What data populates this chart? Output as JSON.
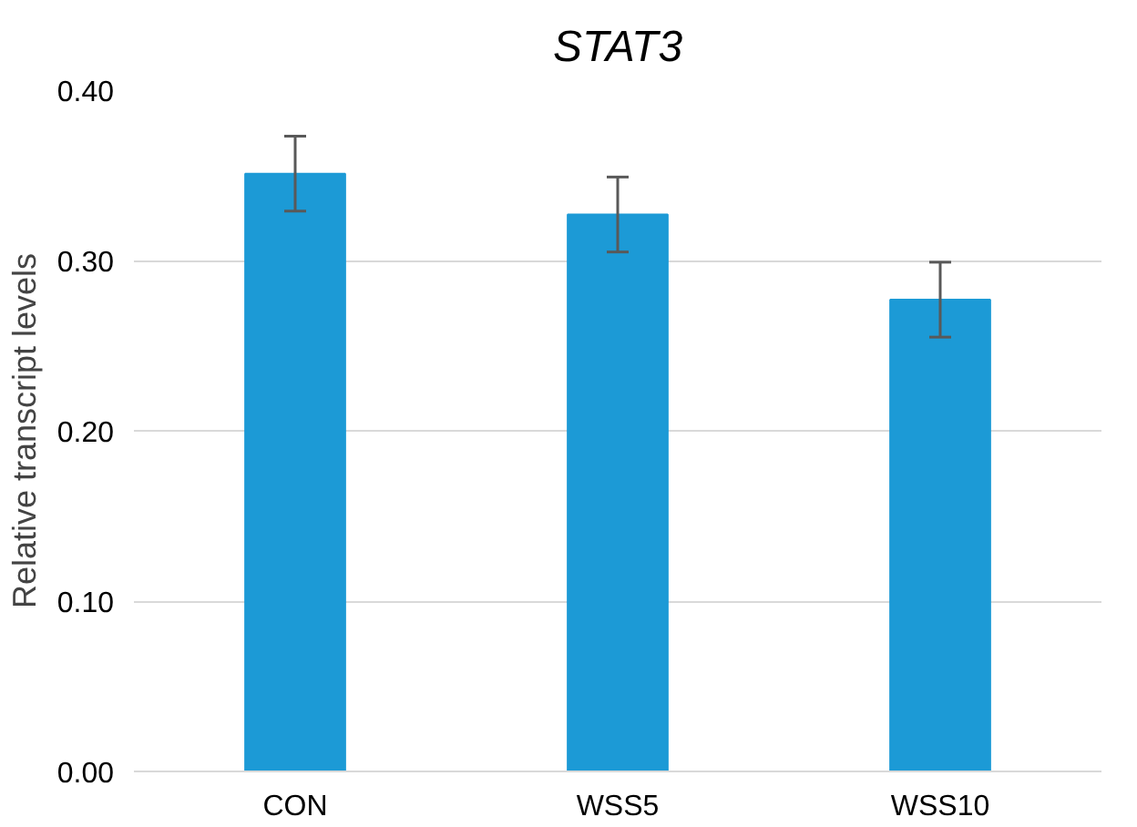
{
  "chart_data": {
    "type": "bar",
    "title": "STAT3",
    "ylabel": "Relative transcript levels",
    "categories": [
      "CON",
      "WSS5",
      "WSS10"
    ],
    "values": [
      0.351,
      0.327,
      0.277
    ],
    "errors": [
      0.022,
      0.022,
      0.022
    ],
    "color": "#1c9ad6",
    "ylim": [
      0,
      0.4
    ],
    "yticks": [
      {
        "value": 0,
        "label": "0.00"
      },
      {
        "value": 0.1,
        "label": "0.10"
      },
      {
        "value": 0.2,
        "label": "0.20"
      },
      {
        "value": 0.3,
        "label": "0.30"
      },
      {
        "value": 0.4,
        "label": "0.40"
      }
    ],
    "grid": "y"
  }
}
